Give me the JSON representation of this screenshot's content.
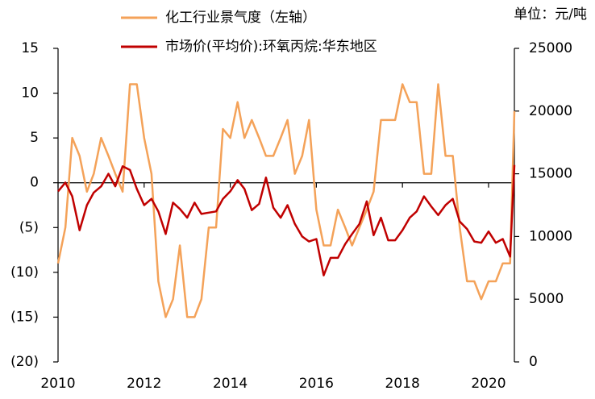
{
  "chart_data": {
    "type": "line",
    "legend_corner": "top",
    "unit_note": "单位：元/吨",
    "x": [
      2010,
      2010.17,
      2010.33,
      2010.5,
      2010.67,
      2010.83,
      2011,
      2011.17,
      2011.33,
      2011.5,
      2011.67,
      2011.83,
      2012,
      2012.17,
      2012.33,
      2012.5,
      2012.67,
      2012.83,
      2013,
      2013.17,
      2013.33,
      2013.5,
      2013.67,
      2013.83,
      2014,
      2014.17,
      2014.33,
      2014.5,
      2014.67,
      2014.83,
      2015,
      2015.17,
      2015.33,
      2015.5,
      2015.67,
      2015.83,
      2016,
      2016.17,
      2016.33,
      2016.5,
      2016.67,
      2016.83,
      2017,
      2017.17,
      2017.33,
      2017.5,
      2017.67,
      2017.83,
      2018,
      2018.17,
      2018.33,
      2018.5,
      2018.67,
      2018.83,
      2019,
      2019.17,
      2019.33,
      2019.5,
      2019.67,
      2019.83,
      2020,
      2020.17,
      2020.33,
      2020.5,
      2020.6
    ],
    "series": [
      {
        "name": "化工行业景气度（左轴）",
        "color": "#f4a259",
        "axis": "y",
        "values": [
          -9,
          -5,
          5,
          3,
          -1,
          1,
          5,
          3,
          1,
          -1,
          11,
          11,
          5,
          1,
          -11,
          -15,
          -13,
          -7,
          -15,
          -15,
          -13,
          -5,
          -5,
          6,
          5,
          9,
          5,
          7,
          5,
          3,
          3,
          5,
          7,
          1,
          3,
          7,
          -3,
          -7,
          -7,
          -3,
          -5,
          -7,
          -5,
          -3,
          -1,
          7,
          7,
          7,
          11,
          9,
          9,
          1,
          1,
          11,
          3,
          3,
          -5,
          -11,
          -11,
          -13,
          -11,
          -11,
          -9,
          -9,
          8
        ]
      },
      {
        "name": "市场价(平均价):环氧丙烷:华东地区",
        "color": "#c00000",
        "axis": "y2",
        "values": [
          13600,
          14300,
          13200,
          10500,
          12500,
          13500,
          14000,
          15000,
          14000,
          15600,
          15300,
          13800,
          12500,
          13000,
          12000,
          10200,
          12700,
          12200,
          11500,
          12700,
          11800,
          11900,
          12000,
          13000,
          13600,
          14500,
          13800,
          12100,
          12600,
          14700,
          12300,
          11500,
          12500,
          11000,
          10000,
          9600,
          9800,
          6900,
          8300,
          8300,
          9400,
          10200,
          11000,
          12800,
          10100,
          11500,
          9700,
          9700,
          10500,
          11500,
          12000,
          13200,
          12400,
          11700,
          12500,
          13000,
          11200,
          10600,
          9600,
          9500,
          10400,
          9500,
          9800,
          8400,
          15700
        ]
      }
    ],
    "xlim": [
      2010,
      2020.6
    ],
    "xticks": [
      2010,
      2012,
      2014,
      2016,
      2018,
      2020
    ],
    "ylim": [
      -20,
      15
    ],
    "yticks": [
      {
        "value": -20,
        "label": "(20)"
      },
      {
        "value": -15,
        "label": "(15)"
      },
      {
        "value": -10,
        "label": "(10)"
      },
      {
        "value": -5,
        "label": "(5)"
      },
      0,
      5,
      10,
      15
    ],
    "y2lim": [
      0,
      25000
    ],
    "y2ticks": [
      0,
      5000,
      10000,
      15000,
      20000,
      25000
    ]
  }
}
